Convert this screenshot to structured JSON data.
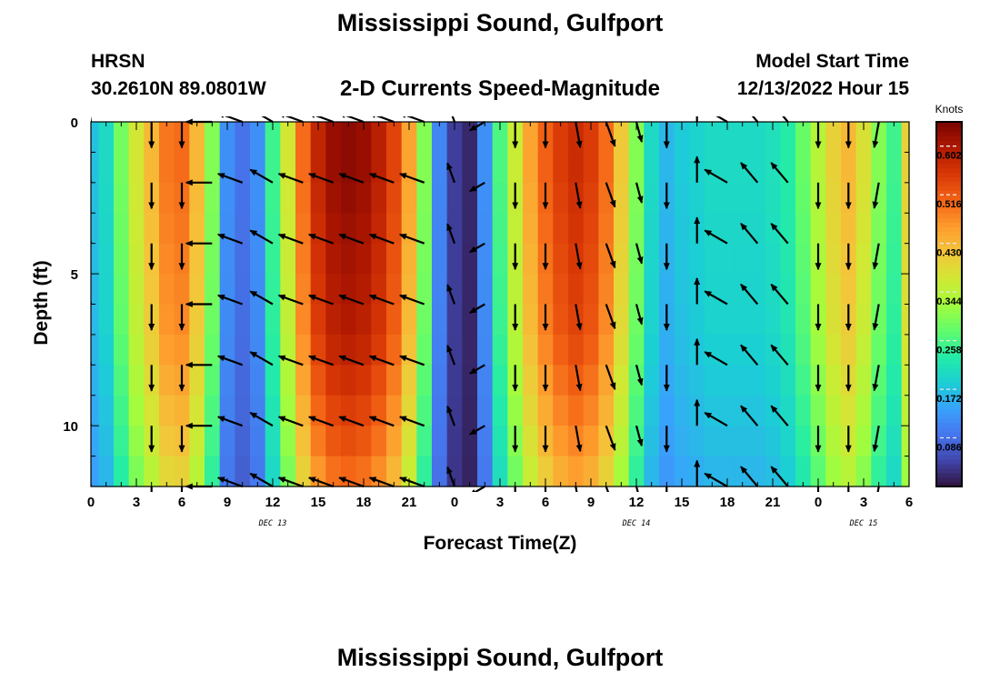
{
  "header": {
    "title": "Mississippi Sound, Gulfport",
    "station_name": "HRSN",
    "station_coords": "30.2610N  89.0801W",
    "chart_title": "2-D Currents Speed-Magnitude",
    "model_start_label": "Model Start Time",
    "model_start_value": "12/13/2022 Hour 15",
    "repeat_title": "Mississippi Sound, Gulfport"
  },
  "chart_data": {
    "type": "heatmap",
    "title": "2-D Currents Speed-Magnitude",
    "xlabel": "Forecast Time(Z)",
    "ylabel": "Depth (ft)",
    "x_tick_labels": [
      "0",
      "3",
      "6",
      "9",
      "12",
      "15",
      "18",
      "21",
      "0",
      "3",
      "6",
      "9",
      "12",
      "15",
      "18",
      "21",
      "0",
      "3",
      "6"
    ],
    "x_range_hours": [
      0,
      54
    ],
    "date_labels": [
      {
        "label": "DEC 13",
        "hour": 12
      },
      {
        "label": "DEC 14",
        "hour": 36
      },
      {
        "label": "DEC 15",
        "hour": 51
      }
    ],
    "y_ticks": [
      0,
      5,
      10
    ],
    "ylim": [
      0,
      12
    ],
    "y_inverted": true,
    "colorbar": {
      "units": "Knots",
      "ticks": [
        0.602,
        0.516,
        0.43,
        0.344,
        0.258,
        0.172,
        0.086
      ],
      "range": [
        0,
        0.645
      ],
      "colormap": [
        "#30123b",
        "#4145ab",
        "#4675ed",
        "#39a2fc",
        "#1bcfd4",
        "#24eca6",
        "#61fc6c",
        "#a4fc3c",
        "#d1e834",
        "#f3c63a",
        "#fe9b2d",
        "#f36315",
        "#d93806",
        "#b11901",
        "#7a0403"
      ]
    },
    "speed_by_hour": [
      0.17,
      0.2,
      0.29,
      0.37,
      0.43,
      0.49,
      0.5,
      0.43,
      0.3,
      0.12,
      0.09,
      0.12,
      0.25,
      0.37,
      0.5,
      0.58,
      0.62,
      0.63,
      0.62,
      0.59,
      0.54,
      0.45,
      0.3,
      0.11,
      0.04,
      0.02,
      0.12,
      0.26,
      0.36,
      0.45,
      0.51,
      0.55,
      0.57,
      0.55,
      0.5,
      0.41,
      0.3,
      0.2,
      0.16,
      0.18,
      0.19,
      0.2,
      0.2,
      0.2,
      0.2,
      0.21,
      0.23,
      0.28,
      0.34,
      0.4,
      0.43,
      0.38,
      0.3,
      0.25,
      0.4
    ],
    "depth_factor": [
      1.0,
      1.0,
      0.99,
      0.98,
      0.97,
      0.96,
      0.95,
      0.93,
      0.9,
      0.87,
      0.84,
      0.8
    ],
    "vectors": {
      "hours": [
        0,
        4,
        6,
        8,
        10,
        12,
        14,
        16,
        18,
        20,
        22,
        24,
        26,
        28,
        30,
        32,
        34,
        36,
        38,
        40,
        42,
        44,
        46,
        48,
        50,
        52
      ],
      "depths": [
        0,
        2,
        4,
        6,
        8,
        10,
        12
      ],
      "direction_deg": [
        260,
        90,
        90,
        180,
        200,
        210,
        200,
        200,
        200,
        200,
        200,
        250,
        150,
        90,
        90,
        80,
        70,
        75,
        90,
        270,
        210,
        230,
        230,
        90,
        90,
        100
      ],
      "length_scale": [
        0.6,
        0.75,
        0.75,
        0.75,
        0.75,
        0.75,
        0.75,
        0.75,
        0.75,
        0.75,
        0.75,
        0.6,
        0.5,
        0.75,
        0.75,
        0.75,
        0.75,
        0.6,
        0.75,
        0.75,
        0.75,
        0.75,
        0.75,
        0.75,
        0.75,
        0.75
      ]
    }
  }
}
